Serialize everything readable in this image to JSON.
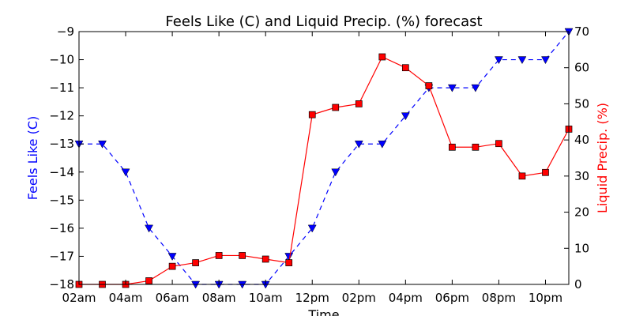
{
  "chart_data": {
    "type": "line",
    "title": "Feels Like (C) and Liquid Precip. (%) forecast",
    "xlabel": "Time",
    "x_tick_labels": [
      "02am",
      "04am",
      "06am",
      "08am",
      "10am",
      "12pm",
      "02pm",
      "04pm",
      "06pm",
      "08pm",
      "10pm"
    ],
    "x_hours": [
      2,
      3,
      4,
      5,
      6,
      7,
      8,
      9,
      10,
      11,
      12,
      13,
      14,
      15,
      16,
      17,
      18,
      19,
      20,
      21,
      22,
      23
    ],
    "xlim": [
      2,
      23
    ],
    "left_axis": {
      "label": "Feels Like (C)",
      "color": "#0000ff",
      "ylim": [
        -18,
        -9
      ],
      "ticks": [
        -18,
        -17,
        -16,
        -15,
        -14,
        -13,
        -12,
        -11,
        -10,
        -9
      ],
      "tick_labels": [
        "−18",
        "−17",
        "−16",
        "−15",
        "−14",
        "−13",
        "−12",
        "−11",
        "−10",
        "−9"
      ]
    },
    "right_axis": {
      "label": "Liquid Precip. (%)",
      "color": "#ff0000",
      "ylim": [
        0,
        70
      ],
      "ticks": [
        0,
        10,
        20,
        30,
        40,
        50,
        60,
        70
      ],
      "tick_labels": [
        "0",
        "10",
        "20",
        "30",
        "40",
        "50",
        "60",
        "70"
      ]
    },
    "series": [
      {
        "axis": "left",
        "color": "#0000ff",
        "line_style": "dashed",
        "marker": "triangle-down",
        "values": [
          -13,
          -13,
          -14,
          -16,
          -17,
          -18,
          -18,
          -18,
          -18,
          -17,
          -16,
          -14,
          -13,
          -13,
          -12,
          -11,
          -11,
          -11,
          -10,
          -10,
          -10,
          -9
        ]
      },
      {
        "axis": "right",
        "color": "#ff0000",
        "line_style": "solid",
        "marker": "square",
        "values": [
          0,
          0,
          0,
          1,
          5,
          6,
          8,
          8,
          7,
          6,
          47,
          49,
          50,
          63,
          60,
          55,
          38,
          38,
          39,
          30,
          31,
          43
        ]
      }
    ],
    "grid": false
  }
}
